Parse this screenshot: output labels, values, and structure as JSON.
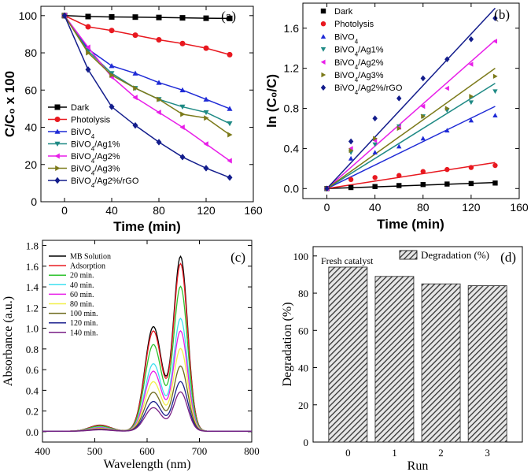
{
  "chart_data": [
    {
      "panel": "(a)",
      "type": "line",
      "xlabel": "Time (min)",
      "ylabel": "C/C₀ x 100",
      "xlim": [
        -20,
        160
      ],
      "ylim": [
        0,
        105
      ],
      "xticks": [
        0,
        40,
        80,
        120,
        160
      ],
      "yticks": [
        0,
        20,
        40,
        60,
        80,
        100
      ],
      "legend_position": "bottom-left",
      "series": [
        {
          "name": "Dark",
          "color": "#000000",
          "marker": "square",
          "x": [
            0,
            20,
            40,
            60,
            80,
            100,
            120,
            140
          ],
          "y": [
            100,
            99.5,
            99.3,
            99.2,
            99,
            98.8,
            98.6,
            98.5
          ]
        },
        {
          "name": "Photolysis",
          "color": "#e8181f",
          "marker": "circle",
          "x": [
            0,
            20,
            40,
            60,
            80,
            100,
            120,
            140
          ],
          "y": [
            100,
            94,
            92,
            89.5,
            87,
            85,
            82.5,
            79
          ]
        },
        {
          "name": "BiVO₄",
          "color": "#1f2bd6",
          "marker": "triangle-up",
          "x": [
            0,
            20,
            40,
            60,
            80,
            100,
            120,
            140
          ],
          "y": [
            100,
            82,
            73,
            69,
            64,
            60,
            55,
            50
          ]
        },
        {
          "name": "BiVO₄/Ag1%",
          "color": "#1f8a85",
          "marker": "triangle-down",
          "x": [
            0,
            20,
            40,
            60,
            80,
            100,
            120,
            140
          ],
          "y": [
            100,
            81,
            69,
            61,
            55,
            51,
            48,
            42
          ]
        },
        {
          "name": "BiVO₄/Ag2%",
          "color": "#e81fe8",
          "marker": "triangle-left",
          "x": [
            0,
            20,
            40,
            60,
            80,
            100,
            120,
            140
          ],
          "y": [
            100,
            83,
            67,
            56,
            48,
            40,
            31,
            22
          ]
        },
        {
          "name": "BiVO₄/Ag3%",
          "color": "#7c7a1a",
          "marker": "triangle-right",
          "x": [
            0,
            20,
            40,
            60,
            80,
            100,
            120,
            140
          ],
          "y": [
            100,
            80,
            68,
            61,
            55,
            47,
            45,
            36
          ]
        },
        {
          "name": "BiVO₄/Ag2%/rGO",
          "color": "#131d8c",
          "marker": "diamond",
          "x": [
            0,
            20,
            40,
            60,
            80,
            100,
            120,
            140
          ],
          "y": [
            100,
            71,
            51,
            41,
            32,
            24,
            18,
            13
          ]
        }
      ]
    },
    {
      "panel": "(b)",
      "type": "scatter",
      "xlabel": "Time (min)",
      "ylabel": "ln (C₀/C)",
      "xlim": [
        -20,
        160
      ],
      "ylim": [
        -0.1,
        1.85
      ],
      "xticks": [
        0,
        40,
        80,
        120,
        160
      ],
      "yticks": [
        0.0,
        0.4,
        0.8,
        1.2,
        1.6
      ],
      "legend_position": "top-left",
      "series": [
        {
          "name": "Dark",
          "color": "#000000",
          "marker": "square",
          "x": [
            0,
            20,
            40,
            60,
            80,
            100,
            120,
            140
          ],
          "y": [
            0,
            0.01,
            0.02,
            0.03,
            0.04,
            0.045,
            0.05,
            0.055
          ],
          "fit_end": 0.06
        },
        {
          "name": "Photolysis",
          "color": "#e8181f",
          "marker": "circle",
          "x": [
            0,
            20,
            40,
            60,
            80,
            100,
            120,
            140
          ],
          "y": [
            0,
            0.09,
            0.11,
            0.13,
            0.17,
            0.19,
            0.21,
            0.23
          ],
          "fit_end": 0.26
        },
        {
          "name": "BiVO₄",
          "color": "#1f2bd6",
          "marker": "triangle-up",
          "x": [
            0,
            20,
            40,
            60,
            80,
            100,
            120,
            140
          ],
          "y": [
            0,
            0.3,
            0.36,
            0.42,
            0.5,
            0.58,
            0.68,
            0.73
          ],
          "fit_end": 0.82
        },
        {
          "name": "BiVO₄/Ag1%",
          "color": "#1f8a85",
          "marker": "triangle-down",
          "x": [
            0,
            20,
            40,
            60,
            80,
            100,
            120,
            140
          ],
          "y": [
            0,
            0.36,
            0.44,
            0.62,
            0.72,
            0.78,
            0.86,
            0.97
          ],
          "fit_end": 1.05
        },
        {
          "name": "BiVO₄/Ag2%",
          "color": "#e81fe8",
          "marker": "triangle-left",
          "x": [
            0,
            20,
            40,
            60,
            80,
            100,
            120,
            140
          ],
          "y": [
            0,
            0.4,
            0.48,
            0.61,
            0.82,
            1.0,
            1.24,
            1.47
          ],
          "fit_end": 1.48
        },
        {
          "name": "BiVO₄/Ag3%",
          "color": "#7c7a1a",
          "marker": "triangle-right",
          "x": [
            0,
            20,
            40,
            60,
            80,
            100,
            120,
            140
          ],
          "y": [
            0,
            0.38,
            0.5,
            0.6,
            0.72,
            0.8,
            0.92,
            1.12
          ],
          "fit_end": 1.2
        },
        {
          "name": "BiVO₄/Ag2%/rGO",
          "color": "#131d8c",
          "marker": "diamond",
          "x": [
            0,
            20,
            40,
            60,
            80,
            100,
            120,
            140
          ],
          "y": [
            0,
            0.47,
            0.7,
            0.9,
            1.1,
            1.29,
            1.49,
            1.7
          ],
          "fit_end": 1.8
        }
      ]
    },
    {
      "panel": "(c)",
      "type": "line",
      "xlabel": "Wavelength (nm)",
      "ylabel": "Absorbance (a.u.)",
      "xlim": [
        400,
        800
      ],
      "ylim": [
        -0.1,
        1.85
      ],
      "xticks": [
        400,
        500,
        600,
        700,
        800
      ],
      "yticks": [
        0.0,
        0.2,
        0.4,
        0.6,
        0.8,
        1.0,
        1.2,
        1.4,
        1.6,
        1.8
      ],
      "legend_position": "top-left",
      "series": [
        {
          "name": "MB Solution",
          "color": "#000000",
          "peak": 1.69
        },
        {
          "name": "Adsorption",
          "color": "#e8181f",
          "peak": 1.62
        },
        {
          "name": "20 min.",
          "color": "#2ec22e",
          "peak": 1.4
        },
        {
          "name": "40 min.",
          "color": "#3fe0f0",
          "peak": 1.09
        },
        {
          "name": "60 min.",
          "color": "#e81fe8",
          "peak": 0.97
        },
        {
          "name": "80 min.",
          "color": "#f2f04a",
          "peak": 0.8
        },
        {
          "name": "100 min.",
          "color": "#6e6a1e",
          "peak": 0.63
        },
        {
          "name": "120 min.",
          "color": "#1a1f8c",
          "peak": 0.48
        },
        {
          "name": "140 min.",
          "color": "#7a1f86",
          "peak": 0.38
        }
      ]
    },
    {
      "panel": "(d)",
      "type": "bar",
      "xlabel": "Run",
      "ylabel": "Degradation (%)",
      "categories": [
        "0",
        "1",
        "2",
        "3"
      ],
      "values": [
        94,
        89,
        85,
        84
      ],
      "ylim": [
        0,
        105
      ],
      "yticks": [
        0,
        20,
        40,
        60,
        80,
        100
      ],
      "legend": "Degradation (%)",
      "annotation": "Fresh catalyst",
      "bar_color": "#555555"
    }
  ]
}
